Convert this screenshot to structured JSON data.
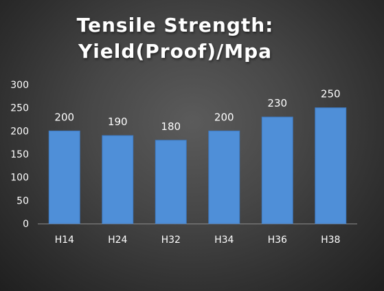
{
  "chart_data": {
    "type": "bar",
    "title": [
      "Tensile Strength:",
      "Yield(Proof)/Mpa"
    ],
    "categories": [
      "H14",
      "H24",
      "H32",
      "H34",
      "H36",
      "H38"
    ],
    "values": [
      200,
      190,
      180,
      200,
      230,
      250
    ],
    "data_labels": [
      "200",
      "190",
      "180",
      "200",
      "230",
      "250"
    ],
    "ylim": [
      0,
      300
    ],
    "yticks": [
      0,
      50,
      100,
      150,
      200,
      250,
      300
    ],
    "ytick_labels": [
      "0",
      "50",
      "100",
      "150",
      "200",
      "250",
      "300"
    ],
    "xlabel": "",
    "ylabel": "",
    "grid": false,
    "legend": "none"
  },
  "colors": {
    "bar": "#4f8fd8",
    "bar_edge": "#3d78bf",
    "text": "#ffffff",
    "axis": "#8a8a8a"
  }
}
